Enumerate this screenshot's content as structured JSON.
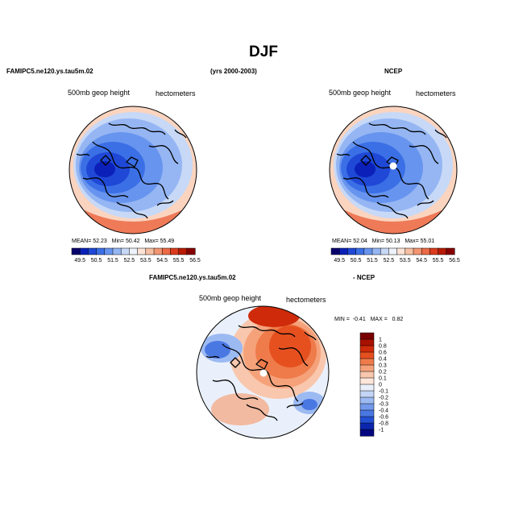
{
  "title": "DJF",
  "header": {
    "left_case": "FAMIPC5.ne120.ys.tau5m.02",
    "years": "(yrs 2000-2003)",
    "right_case": "NCEP",
    "diff_case": "FAMIPC5.ne120.ys.tau5m.02",
    "diff_suffix": "- NCEP"
  },
  "panel_labels": {
    "variable": "500mb geop height",
    "units": "hectometers"
  },
  "chart_data": [
    {
      "type": "heatmap",
      "projection": "north-polar-stereographic",
      "title": "FAMIPC5.ne120.ys.tau5m.02",
      "variable": "500mb geop height",
      "units": "hectometers",
      "stats": {
        "mean_label": "MEAN=",
        "mean": "52.23",
        "min_label": "Min=",
        "min": "50.42",
        "max_label": "Max=",
        "max": "55.49"
      },
      "levels": [
        "49.5",
        "50.5",
        "51.5",
        "52.5",
        "53.5",
        "54.5",
        "55.5",
        "56.5"
      ],
      "colors": [
        "#08006b",
        "#0a20b8",
        "#1f48d6",
        "#3b6fe6",
        "#6794ee",
        "#95b6f3",
        "#c7d9f7",
        "#eef3fb",
        "#fbe3d6",
        "#f7bfa3",
        "#f39573",
        "#ec6a45",
        "#dc3b1d",
        "#b81a06",
        "#860000"
      ]
    },
    {
      "type": "heatmap",
      "projection": "north-polar-stereographic",
      "title": "NCEP",
      "variable": "500mb geop height",
      "units": "hectometers",
      "stats": {
        "mean_label": "MEAN=",
        "mean": "52.04",
        "min_label": "Min=",
        "min": "50.13",
        "max_label": "Max=",
        "max": "55.01"
      },
      "levels": [
        "49.5",
        "50.5",
        "51.5",
        "52.5",
        "53.5",
        "54.5",
        "55.5",
        "56.5"
      ],
      "colors": [
        "#08006b",
        "#0a20b8",
        "#1f48d6",
        "#3b6fe6",
        "#6794ee",
        "#95b6f3",
        "#c7d9f7",
        "#eef3fb",
        "#fbe3d6",
        "#f7bfa3",
        "#f39573",
        "#ec6a45",
        "#dc3b1d",
        "#b81a06",
        "#860000"
      ]
    },
    {
      "type": "heatmap",
      "projection": "north-polar-stereographic",
      "title": "FAMIPC5.ne120.ys.tau5m.02 - NCEP",
      "variable": "500mb geop height",
      "units": "hectometers",
      "stats": {
        "min_label": "MIN =",
        "min": "-0.41",
        "max_label": "MAX =",
        "max": "0.82"
      },
      "levels": [
        "1",
        "0.8",
        "0.6",
        "0.4",
        "0.3",
        "0.2",
        "0.1",
        "0",
        "-0.1",
        "-0.2",
        "-0.3",
        "-0.4",
        "-0.6",
        "-0.8",
        "-1"
      ],
      "colors": [
        "#7a0000",
        "#a81000",
        "#cf2b0a",
        "#e6501f",
        "#ef7b4a",
        "#f5a27b",
        "#f9c7ad",
        "#fde6da",
        "#eaf0fb",
        "#c4d6f6",
        "#9cbaf2",
        "#7299ec",
        "#4a78e3",
        "#2350d3",
        "#0b26ad",
        "#040780"
      ]
    }
  ]
}
